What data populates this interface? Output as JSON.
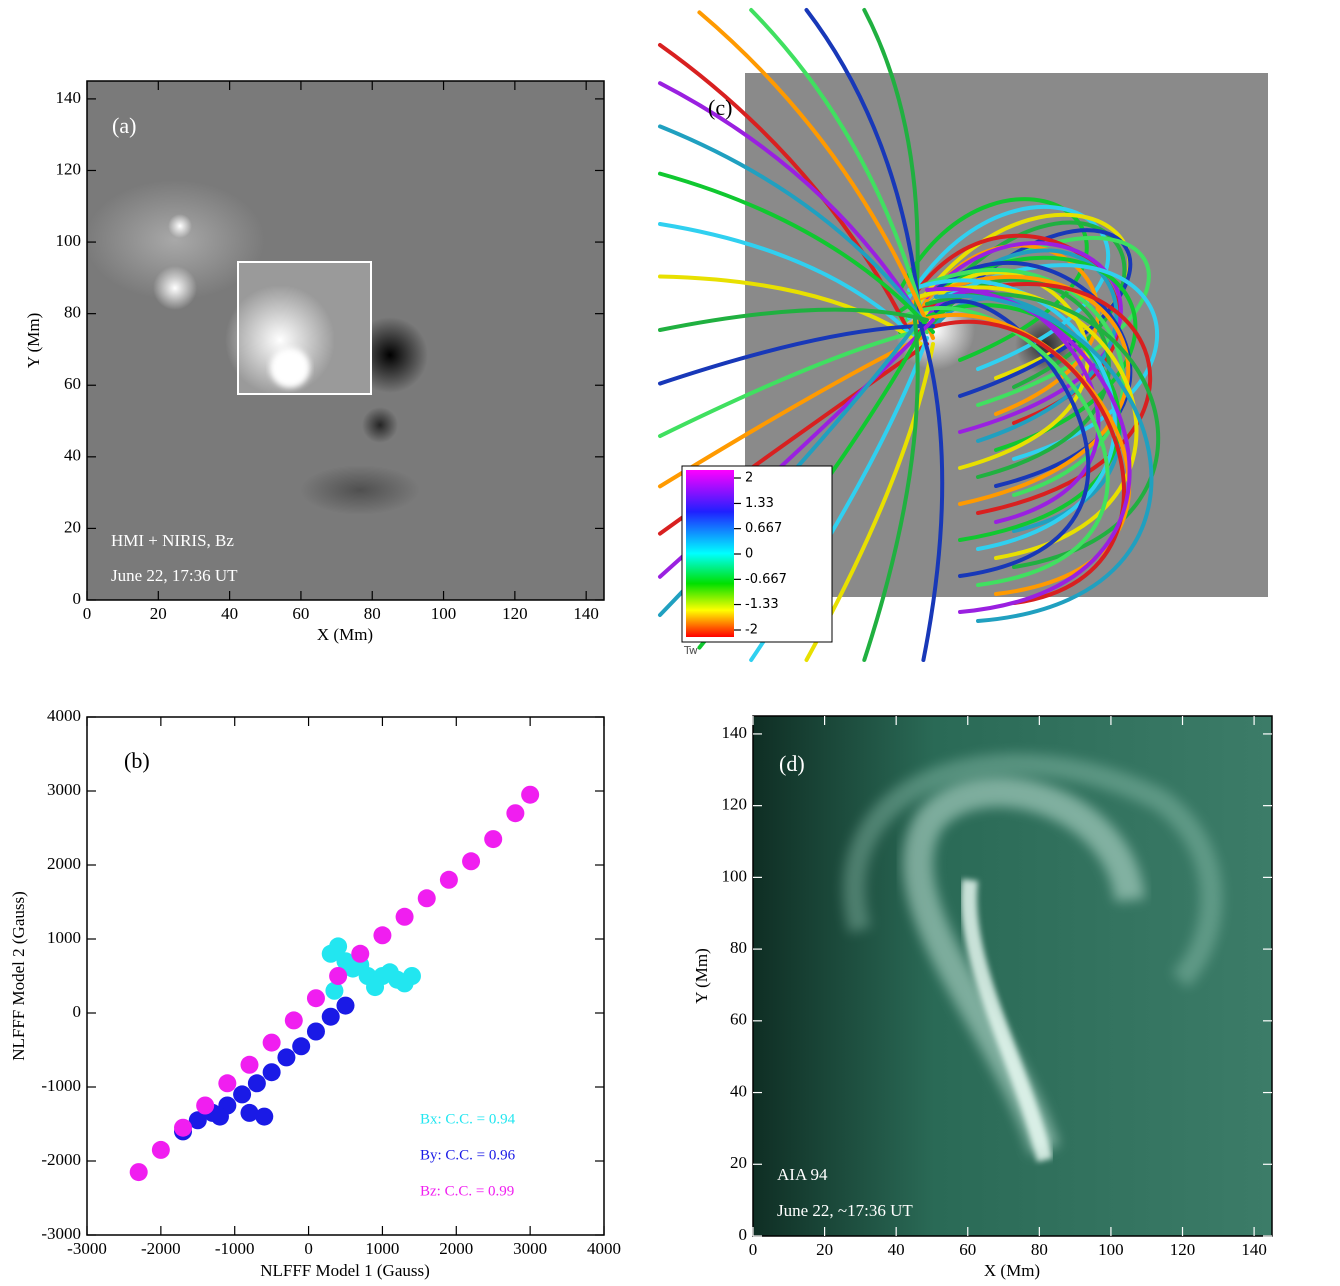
{
  "chart_data": [
    {
      "type": "image",
      "panel_label": "(a)",
      "xlabel": "X (Mm)",
      "ylabel": "Y (Mm)",
      "xlim": [
        0,
        145
      ],
      "ylim": [
        0,
        145
      ],
      "xticks": [
        0,
        20,
        40,
        60,
        80,
        100,
        120,
        140
      ],
      "yticks": [
        0,
        20,
        40,
        60,
        80,
        100,
        120,
        140
      ],
      "annotations": [
        "HMI + NIRIS, Bz",
        "June 22, 17:36 UT"
      ]
    },
    {
      "type": "fieldlines",
      "panel_label": "(c)",
      "colorbar_label": "Tw",
      "colorbar_lim": [
        -2,
        2
      ],
      "colorbar_ticks": [
        2,
        1.33,
        0.667,
        0,
        -0.667,
        -1.33,
        -2
      ]
    },
    {
      "type": "scatter",
      "panel_label": "(b)",
      "xlabel": "NLFFF Model 1 (Gauss)",
      "ylabel": "NLFFF Model 2 (Gauss)",
      "xlim": [
        -3000,
        4000
      ],
      "ylim": [
        -3000,
        4000
      ],
      "xticks": [
        -3000,
        -2000,
        -1000,
        0,
        1000,
        2000,
        3000,
        4000
      ],
      "yticks": [
        -3000,
        -2000,
        -1000,
        0,
        1000,
        2000,
        3000,
        4000
      ],
      "series": [
        {
          "name": "Bx: C.C. = 0.94",
          "color": "#22e6f0",
          "x": [
            300,
            400,
            500,
            600,
            700,
            800,
            900,
            1000,
            1100,
            1200,
            1300,
            1400,
            350,
            900
          ],
          "y": [
            800,
            900,
            700,
            600,
            650,
            500,
            450,
            500,
            550,
            450,
            400,
            500,
            300,
            350
          ]
        },
        {
          "name": "By: C.C. = 0.96",
          "color": "#1a1ae6",
          "x": [
            -1700,
            -1500,
            -1300,
            -1100,
            -900,
            -700,
            -500,
            -300,
            -100,
            100,
            300,
            500,
            -1200,
            -800,
            -600
          ],
          "y": [
            -1600,
            -1450,
            -1350,
            -1250,
            -1100,
            -950,
            -800,
            -600,
            -450,
            -250,
            -50,
            100,
            -1400,
            -1350,
            -1400
          ]
        },
        {
          "name": "Bz: C.C. = 0.99",
          "color": "#f01ef0",
          "x": [
            -2300,
            -2000,
            -1700,
            -1400,
            -1100,
            -800,
            -500,
            -200,
            100,
            400,
            700,
            1000,
            1300,
            1600,
            1900,
            2200,
            2500,
            2800,
            3000
          ],
          "y": [
            -2150,
            -1850,
            -1550,
            -1250,
            -950,
            -700,
            -400,
            -100,
            200,
            500,
            800,
            1050,
            1300,
            1550,
            1800,
            2050,
            2350,
            2700,
            2950
          ]
        }
      ]
    },
    {
      "type": "image",
      "panel_label": "(d)",
      "xlabel": "X (Mm)",
      "ylabel": "Y (Mm)",
      "xlim": [
        0,
        145
      ],
      "ylim": [
        0,
        145
      ],
      "xticks": [
        0,
        20,
        40,
        60,
        80,
        100,
        120,
        140
      ],
      "yticks": [
        0,
        20,
        40,
        60,
        80,
        100,
        120,
        140
      ],
      "annotations": [
        "AIA 94",
        "June 22, ~17:36 UT"
      ]
    }
  ]
}
